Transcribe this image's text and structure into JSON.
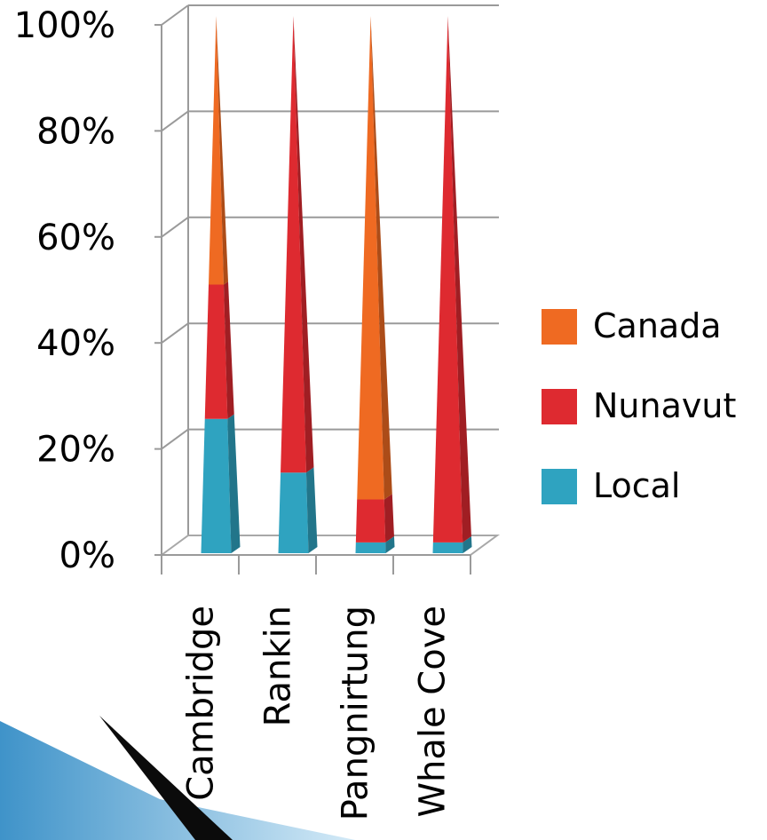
{
  "chart_data": {
    "type": "bar",
    "stacked": "percent",
    "shape": "cone",
    "categories": [
      "Cambridge",
      "Rankin",
      "Pangnirtung",
      "Whale Cove"
    ],
    "series": [
      {
        "name": "Local",
        "color": "#2fa3c0",
        "values": [
          25,
          15,
          2,
          2
        ]
      },
      {
        "name": "Nunavut",
        "color": "#de2a30",
        "values": [
          25,
          85,
          8,
          98
        ]
      },
      {
        "name": "Canada",
        "color": "#ef6a22",
        "values": [
          50,
          0,
          90,
          0
        ]
      }
    ],
    "y_ticks": [
      "0%",
      "20%",
      "40%",
      "60%",
      "80%",
      "100%"
    ],
    "ylim": [
      0,
      100
    ],
    "grid": true,
    "legend_position": "right",
    "legend_order": [
      "Canada",
      "Nunavut",
      "Local"
    ]
  }
}
